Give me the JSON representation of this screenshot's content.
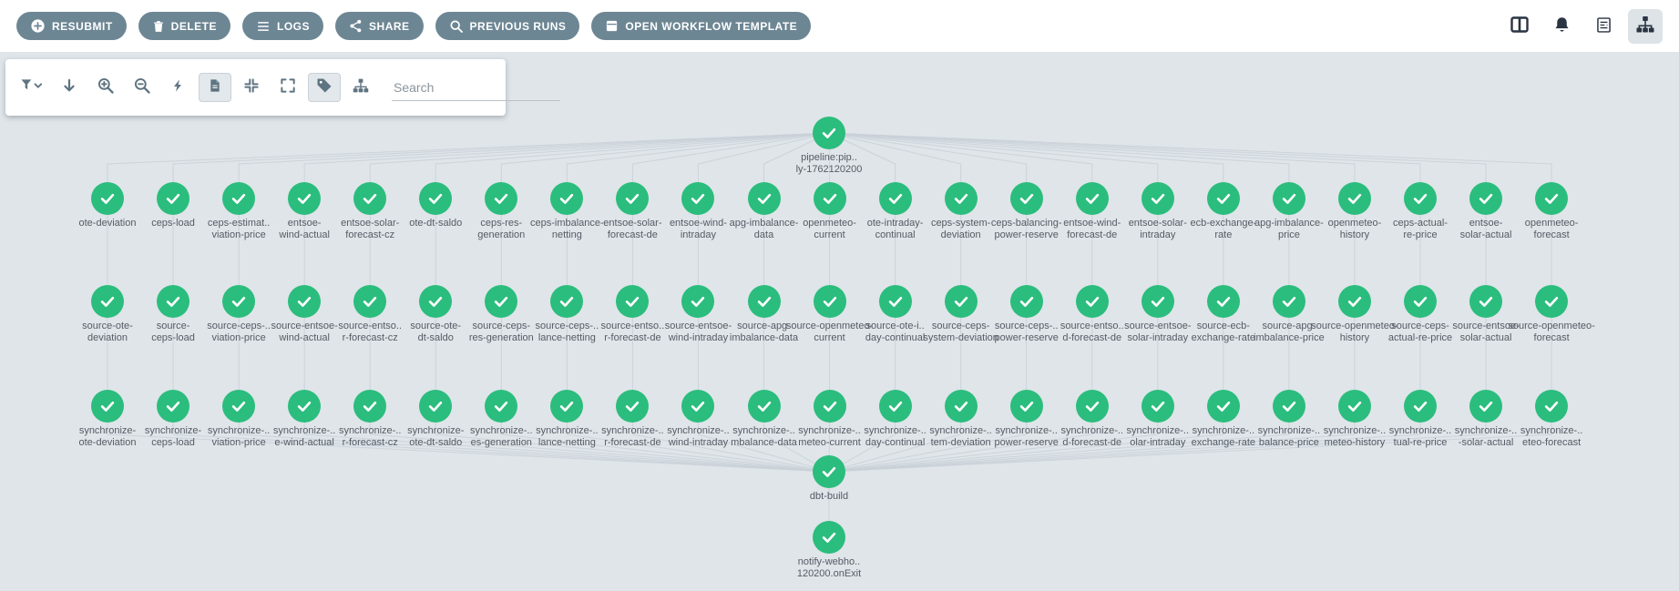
{
  "topbar": {
    "buttons": [
      {
        "label": "RESUBMIT",
        "icon": "plus-circle-icon"
      },
      {
        "label": "DELETE",
        "icon": "trash-icon"
      },
      {
        "label": "LOGS",
        "icon": "list-icon"
      },
      {
        "label": "SHARE",
        "icon": "share-icon"
      },
      {
        "label": "PREVIOUS RUNS",
        "icon": "search-icon"
      },
      {
        "label": "OPEN WORKFLOW TEMPLATE",
        "icon": "template-icon"
      }
    ],
    "right_icons": [
      "split-columns-icon",
      "bell-icon",
      "report-icon",
      "sitemap-icon"
    ],
    "active_right_icon": "sitemap-icon"
  },
  "graph_toolbar": {
    "icons": [
      "filter-icon",
      "down-arrow-icon",
      "zoom-in-icon",
      "zoom-out-icon",
      "lightning-icon",
      "document-icon",
      "compress-icon",
      "expand-icon",
      "tag-icon",
      "sitemap-icon"
    ],
    "active_icons": [
      "document-icon",
      "tag-icon"
    ],
    "search_placeholder": "Search"
  },
  "colors": {
    "button_bg": "#6d8694",
    "graph_bg": "#dfe5e9",
    "node_success": "#2bbd7d",
    "edge": "#c9d0d7",
    "label_text": "#565b64",
    "dark_icon": "#2a3442",
    "tool_icon": "#5f7481"
  },
  "graph": {
    "node_status": "succeeded",
    "root": [
      "pipeline:pip..",
      "ly-1762120200"
    ],
    "rows": [
      [
        [
          "ote-deviation"
        ],
        [
          "ceps-load"
        ],
        [
          "ceps-estimat..",
          "viation-price"
        ],
        [
          "entsoe-",
          "wind-actual"
        ],
        [
          "entsoe-solar-",
          "forecast-cz"
        ],
        [
          "ote-dt-saldo"
        ],
        [
          "ceps-res-",
          "generation"
        ],
        [
          "ceps-imbalance-",
          "netting"
        ],
        [
          "entsoe-solar-",
          "forecast-de"
        ],
        [
          "entsoe-wind-",
          "intraday"
        ],
        [
          "apg-imbalance-",
          "data"
        ],
        [
          "openmeteo-",
          "current"
        ],
        [
          "ote-intraday-",
          "continual"
        ],
        [
          "ceps-system-",
          "deviation"
        ],
        [
          "ceps-balancing-",
          "power-reserve"
        ],
        [
          "entsoe-wind-",
          "forecast-de"
        ],
        [
          "entsoe-solar-",
          "intraday"
        ],
        [
          "ecb-exchange-",
          "rate"
        ],
        [
          "apg-imbalance-",
          "price"
        ],
        [
          "openmeteo-",
          "history"
        ],
        [
          "ceps-actual-",
          "re-price"
        ],
        [
          "entsoe-",
          "solar-actual"
        ],
        [
          "openmeteo-",
          "forecast"
        ]
      ],
      [
        [
          "source-ote-",
          "deviation"
        ],
        [
          "source-",
          "ceps-load"
        ],
        [
          "source-ceps-..",
          "viation-price"
        ],
        [
          "source-entsoe-",
          "wind-actual"
        ],
        [
          "source-entso..",
          "r-forecast-cz"
        ],
        [
          "source-ote-",
          "dt-saldo"
        ],
        [
          "source-ceps-",
          "res-generation"
        ],
        [
          "source-ceps-..",
          "lance-netting"
        ],
        [
          "source-entso..",
          "r-forecast-de"
        ],
        [
          "source-entsoe-",
          "wind-intraday"
        ],
        [
          "source-apg-",
          "imbalance-data"
        ],
        [
          "source-openmeteo-",
          "current"
        ],
        [
          "source-ote-i..",
          "day-continual"
        ],
        [
          "source-ceps-",
          "system-deviation"
        ],
        [
          "source-ceps-..",
          "power-reserve"
        ],
        [
          "source-entso..",
          "d-forecast-de"
        ],
        [
          "source-entsoe-",
          "solar-intraday"
        ],
        [
          "source-ecb-",
          "exchange-rate"
        ],
        [
          "source-apg-",
          "imbalance-price"
        ],
        [
          "source-openmeteo-",
          "history"
        ],
        [
          "source-ceps-",
          "actual-re-price"
        ],
        [
          "source-entsoe-",
          "solar-actual"
        ],
        [
          "source-openmeteo-",
          "forecast"
        ]
      ],
      [
        [
          "synchronize-",
          "ote-deviation"
        ],
        [
          "synchronize-",
          "ceps-load"
        ],
        [
          "synchronize-..",
          "viation-price"
        ],
        [
          "synchronize-..",
          "e-wind-actual"
        ],
        [
          "synchronize-..",
          "r-forecast-cz"
        ],
        [
          "synchronize-",
          "ote-dt-saldo"
        ],
        [
          "synchronize-..",
          "es-generation"
        ],
        [
          "synchronize-..",
          "lance-netting"
        ],
        [
          "synchronize-..",
          "r-forecast-de"
        ],
        [
          "synchronize-..",
          "wind-intraday"
        ],
        [
          "synchronize-..",
          "mbalance-data"
        ],
        [
          "synchronize-..",
          "meteo-current"
        ],
        [
          "synchronize-..",
          "day-continual"
        ],
        [
          "synchronize-..",
          "tem-deviation"
        ],
        [
          "synchronize-..",
          "power-reserve"
        ],
        [
          "synchronize-..",
          "d-forecast-de"
        ],
        [
          "synchronize-..",
          "olar-intraday"
        ],
        [
          "synchronize-..",
          "exchange-rate"
        ],
        [
          "synchronize-..",
          "balance-price"
        ],
        [
          "synchronize-..",
          "meteo-history"
        ],
        [
          "synchronize-..",
          "tual-re-price"
        ],
        [
          "synchronize-..",
          "-solar-actual"
        ],
        [
          "synchronize-..",
          "eteo-forecast"
        ]
      ]
    ],
    "dbt_build": [
      "dbt-build"
    ],
    "on_exit": [
      "notify-webho..",
      "120200.onExit"
    ]
  }
}
